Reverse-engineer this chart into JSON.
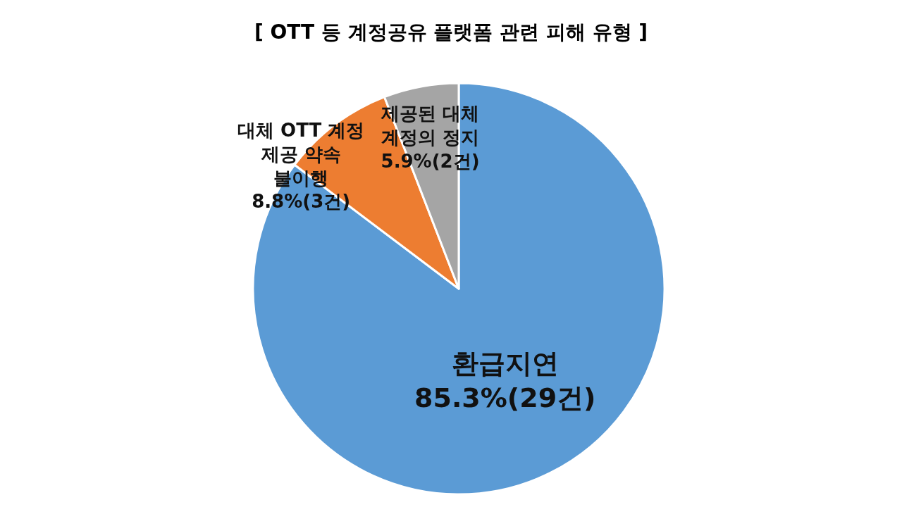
{
  "chart_data": {
    "type": "pie",
    "title": "[ OTT 등 계정공유 플랫폼 관련 피해 유형 ]",
    "categories": [
      "환급지연",
      "대체 OTT 계정\n제공 약속\n불이행",
      "제공된 대체\n계정의 정지"
    ],
    "values": [
      29,
      3,
      2
    ],
    "value_labels": [
      "85.3%(29건)",
      "8.8%(3건)",
      "5.9%(2건)"
    ],
    "colors": [
      "#5b9bd5",
      "#ed7d31",
      "#a5a5a5"
    ]
  }
}
